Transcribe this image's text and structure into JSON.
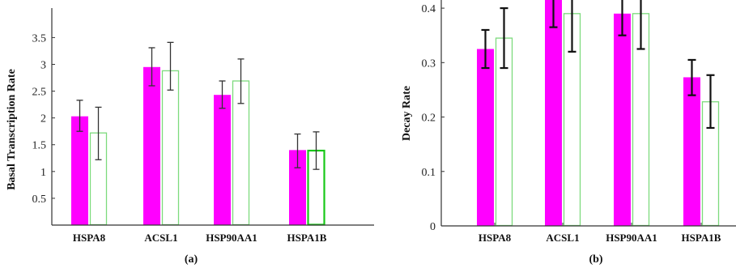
{
  "colors": {
    "bar_filled": "#ff00ff",
    "bar_outline": "#7dda7d",
    "bar_outline_highlight": "#18c818",
    "axis": "#333333",
    "errorbar_a": "#333333",
    "errorbar_b": "#111111"
  },
  "chart_data": [
    {
      "type": "bar",
      "panel_label": "(a)",
      "title": "",
      "xlabel": "",
      "ylabel": "Basal Transcription Rate",
      "categories": [
        "HSPA8",
        "ACSL1",
        "HSP90AA1",
        "HSPA1B"
      ],
      "ylim": [
        0,
        4.05
      ],
      "yticks": [
        0.5,
        1,
        1.5,
        2,
        2.5,
        3,
        3.5
      ],
      "ytick_labels": [
        "0.5",
        "1",
        "1.5",
        "2",
        "2.5",
        "3",
        "3.5"
      ],
      "grid": false,
      "legend": "none",
      "series": [
        {
          "style": "filled",
          "values": [
            2.03,
            2.95,
            2.43,
            1.4
          ],
          "err_low": [
            1.75,
            2.6,
            2.18,
            1.07
          ],
          "err_high": [
            2.33,
            3.31,
            2.69,
            1.7
          ]
        },
        {
          "style": "outline",
          "values": [
            1.72,
            2.88,
            2.69,
            1.39
          ],
          "err_low": [
            1.22,
            2.52,
            2.27,
            1.04
          ],
          "err_high": [
            2.2,
            3.41,
            3.1,
            1.74
          ]
        }
      ]
    },
    {
      "type": "bar",
      "panel_label": "(b)",
      "title": "",
      "xlabel": "",
      "ylabel": "Decay Rate",
      "categories": [
        "HSPA8",
        "ACSL1",
        "HSP90AA1",
        "HSPA1B"
      ],
      "ylim": [
        0,
        0.415
      ],
      "yticks": [
        0,
        0.1,
        0.2,
        0.3,
        0.4
      ],
      "ytick_labels": [
        "0",
        "0.1",
        "0.2",
        "0.3",
        "0.4"
      ],
      "grid": false,
      "legend": "none",
      "series": [
        {
          "style": "filled",
          "values": [
            0.325,
            0.42,
            0.39,
            0.273
          ],
          "err_low": [
            0.29,
            0.365,
            0.35,
            0.24
          ],
          "err_high": [
            0.36,
            0.47,
            0.425,
            0.305
          ]
        },
        {
          "style": "outline",
          "values": [
            0.345,
            0.39,
            0.39,
            0.228
          ],
          "err_low": [
            0.29,
            0.32,
            0.325,
            0.18
          ],
          "err_high": [
            0.4,
            0.46,
            0.45,
            0.277
          ]
        }
      ]
    }
  ]
}
